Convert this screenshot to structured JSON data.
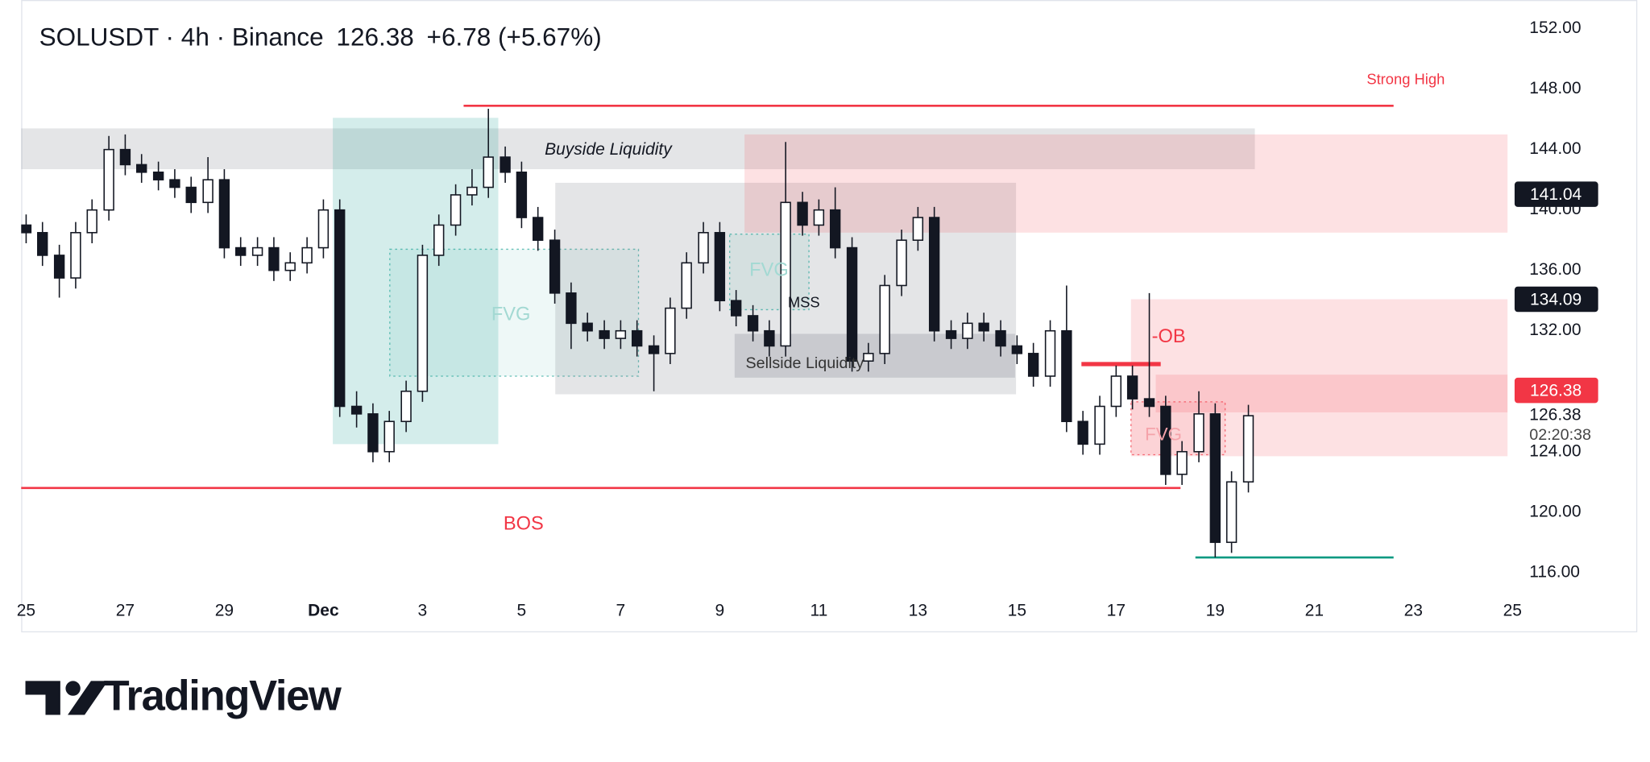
{
  "chart_data": {
    "type": "candlestick",
    "title": "SOLUSDT · 4h · Binance",
    "last_price": 126.38,
    "change": "+6.78 (+5.67%)",
    "countdown": "02:20:38",
    "xlim": [
      -0.1,
      30
    ],
    "ylim": [
      114.7,
      153.9
    ],
    "xticks": [
      {
        "value": 0,
        "label": "25"
      },
      {
        "value": 2,
        "label": "27"
      },
      {
        "value": 4,
        "label": "29"
      },
      {
        "value": 6,
        "label": "Dec"
      },
      {
        "value": 8,
        "label": "3"
      },
      {
        "value": 10,
        "label": "5"
      },
      {
        "value": 12,
        "label": "7"
      },
      {
        "value": 14,
        "label": "9"
      },
      {
        "value": 16,
        "label": "11"
      },
      {
        "value": 18,
        "label": "13"
      },
      {
        "value": 20,
        "label": "15"
      },
      {
        "value": 22,
        "label": "17"
      },
      {
        "value": 24,
        "label": "19"
      },
      {
        "value": 26,
        "label": "21"
      },
      {
        "value": 28,
        "label": "23"
      },
      {
        "value": 30,
        "label": "25"
      }
    ],
    "yticks": [
      {
        "value": 116,
        "label": "116.00"
      },
      {
        "value": 120,
        "label": "120.00"
      },
      {
        "value": 124,
        "label": "124.00"
      },
      {
        "value": 128,
        "label": "128.00"
      },
      {
        "value": 132,
        "label": "132.00"
      },
      {
        "value": 136,
        "label": "136.00"
      },
      {
        "value": 140,
        "label": "140.00"
      },
      {
        "value": 144,
        "label": "144.00"
      },
      {
        "value": 148,
        "label": "148.00"
      },
      {
        "value": 152,
        "label": "152.00"
      }
    ],
    "candle_colors": {
      "up": "#ffffff",
      "down": "#131722"
    },
    "x": [
      0,
      0.33,
      0.67,
      1,
      1.33,
      1.67,
      2,
      2.33,
      2.67,
      3,
      3.33,
      3.67,
      4,
      4.33,
      4.67,
      5,
      5.33,
      5.67,
      6,
      6.33,
      6.67,
      7,
      7.33,
      7.67,
      8,
      8.33,
      8.67,
      9,
      9.33,
      9.67,
      10,
      10.33,
      10.67,
      11,
      11.33,
      11.67,
      12,
      12.33,
      12.67,
      13,
      13.33,
      13.67,
      14,
      14.33,
      14.67,
      15,
      15.33,
      15.67,
      16,
      16.33,
      16.67,
      17,
      17.33,
      17.67,
      18,
      18.33,
      18.67,
      19,
      19.33,
      19.67,
      20,
      20.33,
      20.67,
      21,
      21.33,
      21.67,
      22,
      22.33,
      22.67,
      23,
      23.33,
      23.67,
      24,
      24.33,
      24.67
    ],
    "open": [
      139,
      138.5,
      137,
      135.5,
      138.5,
      140,
      144,
      143,
      142.5,
      142,
      141.5,
      140.5,
      142,
      137.5,
      137,
      137.5,
      136,
      136.5,
      137.5,
      140,
      127,
      126.5,
      124,
      126,
      128,
      137,
      139,
      141,
      141.5,
      143.5,
      142.5,
      139.5,
      138,
      134.5,
      132.5,
      132,
      131.5,
      132,
      131,
      130.5,
      133.5,
      136.5,
      138.5,
      134,
      133,
      132,
      131,
      140.5,
      139,
      140,
      137.5,
      130,
      130.5,
      135,
      138,
      139.5,
      132,
      131.5,
      132.5,
      132,
      131,
      130.5,
      129,
      132,
      126,
      124.5,
      127,
      129,
      127.5,
      127,
      122.5,
      124,
      126.5,
      118,
      122
    ],
    "high": [
      139.7,
      139.2,
      137.7,
      139.2,
      140.7,
      144.9,
      145,
      143.7,
      143.2,
      142.7,
      142.2,
      143.5,
      142.7,
      138.2,
      138.2,
      138.2,
      137.2,
      138.2,
      140.7,
      140.7,
      128,
      127.2,
      126.7,
      128.7,
      137.7,
      139.7,
      141.7,
      142.7,
      146.7,
      144.2,
      143.2,
      140.2,
      138.7,
      135.2,
      133.2,
      132.7,
      132.7,
      132.7,
      131.7,
      134.2,
      137.2,
      139.2,
      139.2,
      134.7,
      133.7,
      132.7,
      144.5,
      141.2,
      140.7,
      141.5,
      138.2,
      131.2,
      135.7,
      138.7,
      140.2,
      140.2,
      132.7,
      133.2,
      133.2,
      132.7,
      131.7,
      131.2,
      132.7,
      135,
      126.7,
      127.7,
      129.7,
      129.7,
      134.5,
      127.7,
      124.7,
      128,
      127.2,
      122.7,
      127.1
    ],
    "low": [
      137.8,
      136.3,
      134.2,
      134.8,
      137.8,
      139.3,
      142.3,
      141.8,
      141.3,
      140.8,
      139.8,
      139.8,
      136.8,
      136.3,
      136.3,
      135.3,
      135.3,
      135.8,
      136.8,
      126.3,
      125.6,
      123.3,
      123.3,
      125.3,
      127.3,
      136.3,
      138.3,
      140.3,
      140.8,
      141.8,
      138.8,
      137.3,
      133.8,
      130.8,
      131.3,
      130.8,
      130.8,
      130.3,
      128,
      129.8,
      132.8,
      135.8,
      133.3,
      132.3,
      131.3,
      130.3,
      130.3,
      138.3,
      138.3,
      136.8,
      129.3,
      129.3,
      129.8,
      134.3,
      137.3,
      131.3,
      130.8,
      130.8,
      131.3,
      130.3,
      129.8,
      128.3,
      128.3,
      125.3,
      123.8,
      123.8,
      126.3,
      126.8,
      126.3,
      121.8,
      121.8,
      123.3,
      117,
      117.3,
      121.3
    ],
    "close": [
      138.5,
      137,
      135.5,
      138.5,
      140,
      144,
      143,
      142.5,
      142,
      141.5,
      140.5,
      142,
      137.5,
      137,
      137.5,
      136,
      136.5,
      137.5,
      140,
      127,
      126.5,
      124,
      126,
      128,
      137,
      139,
      141,
      141.5,
      143.5,
      142.5,
      139.5,
      138,
      134.5,
      132.5,
      132,
      131.5,
      132,
      131,
      130.5,
      133.5,
      136.5,
      138.5,
      134,
      133,
      132,
      131,
      140.5,
      139,
      140,
      137.5,
      130,
      130.5,
      135,
      138,
      139.5,
      132,
      131.5,
      132.5,
      132,
      131,
      130.5,
      129,
      132,
      126,
      124.5,
      127,
      129,
      127.5,
      127,
      122.5,
      124,
      126.5,
      118,
      122,
      126.38
    ],
    "zones": [
      {
        "x": [
          -0.2,
          24.8
        ],
        "y": [
          142.7,
          145.4
        ],
        "color": "rgba(120,123,134,0.2)",
        "label": "Buyside Liquidity"
      },
      {
        "x": [
          6.19,
          9.53
        ],
        "y": [
          124.5,
          146.1
        ],
        "color": "rgba(38,166,154,0.2)"
      },
      {
        "x": [
          7.34,
          12.36
        ],
        "y": [
          129,
          137.4
        ],
        "color": "rgba(38,166,154,0.08)",
        "dashed": true,
        "label": "FVG"
      },
      {
        "x": [
          10.68,
          19.98
        ],
        "y": [
          127.8,
          141.8
        ],
        "color": "rgba(120,123,134,0.2)"
      },
      {
        "x": [
          14.2,
          15.8
        ],
        "y": [
          133.4,
          138.4
        ],
        "color": "rgba(38,166,154,0.08)",
        "dashed": true,
        "label": "FVG"
      },
      {
        "x": [
          14.3,
          19.96
        ],
        "y": [
          128.9,
          131.8
        ],
        "color": "rgba(120,123,134,0.25)",
        "label": "Sellside Liquidity"
      },
      {
        "x": [
          14.5,
          29.9
        ],
        "y": [
          138.5,
          145
        ],
        "color": "rgba(242,54,69,0.15)"
      },
      {
        "x": [
          22.3,
          29.9
        ],
        "y": [
          123.7,
          134.09
        ],
        "color": "rgba(242,54,69,0.15)",
        "label": "-OB"
      },
      {
        "x": [
          22.8,
          29.9
        ],
        "y": [
          126.6,
          129.1
        ],
        "color": "rgba(242,54,69,0.15)"
      },
      {
        "x": [
          22.3,
          24.2
        ],
        "y": [
          123.8,
          127.3
        ],
        "color": "rgba(242,54,69,0.08)",
        "dashed": true,
        "label": "FVG"
      }
    ],
    "levels": [
      {
        "value": 146.9,
        "x": [
          8.83,
          27.6
        ],
        "color": "#f23645",
        "label": "Strong High"
      },
      {
        "value": 121.6,
        "x": [
          -0.2,
          23.3
        ],
        "color": "#f23645",
        "label": "BOS"
      },
      {
        "value": 129.8,
        "x": [
          21.3,
          22.9
        ],
        "color": "#f23645"
      },
      {
        "value": 117,
        "x": [
          23.6,
          27.6
        ],
        "color": "#089981"
      }
    ],
    "annotations": [
      "MSS"
    ],
    "price_labels": [
      {
        "value": 141.04,
        "color": "#131722"
      },
      {
        "value": 134.09,
        "color": "#131722"
      },
      {
        "value": 126.38,
        "color": "#f23645"
      }
    ]
  },
  "branding": {
    "logo": "TradingView"
  }
}
